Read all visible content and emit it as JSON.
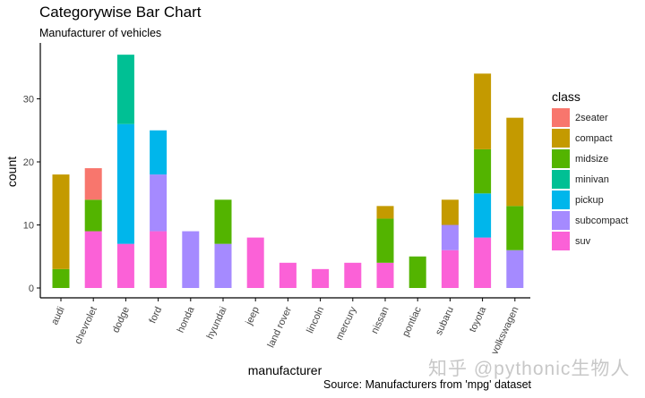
{
  "title": "Categorywise Bar Chart",
  "subtitle": "Manufacturer of vehicles",
  "caption": "Source: Manufacturers from 'mpg' dataset",
  "watermark": "知乎 @pythonic生物人",
  "legend": {
    "title": "class",
    "items": [
      {
        "label": "2seater",
        "color": "#F8766D"
      },
      {
        "label": "compact",
        "color": "#C49A00"
      },
      {
        "label": "midsize",
        "color": "#53B400"
      },
      {
        "label": "minivan",
        "color": "#00C094"
      },
      {
        "label": "pickup",
        "color": "#00B6EB"
      },
      {
        "label": "subcompact",
        "color": "#A58AFF"
      },
      {
        "label": "suv",
        "color": "#FB61D7"
      }
    ]
  },
  "chart_data": {
    "type": "bar",
    "stacked": true,
    "title": "Categorywise Bar Chart",
    "subtitle": "Manufacturer of vehicles",
    "xlabel": "manufacturer",
    "ylabel": "count",
    "caption": "Source: Manufacturers from 'mpg' dataset",
    "ylim": [
      0,
      38
    ],
    "yticks": [
      0,
      10,
      20,
      30
    ],
    "grid": false,
    "legend_position": "right",
    "legend_title": "class",
    "categories": [
      "audi",
      "chevrolet",
      "dodge",
      "ford",
      "honda",
      "hyundai",
      "jeep",
      "land rover",
      "lincoln",
      "mercury",
      "nissan",
      "pontiac",
      "subaru",
      "toyota",
      "volkswagen"
    ],
    "series": [
      {
        "name": "2seater",
        "color": "#F8766D",
        "values": [
          0,
          5,
          0,
          0,
          0,
          0,
          0,
          0,
          0,
          0,
          0,
          0,
          0,
          0,
          0
        ]
      },
      {
        "name": "compact",
        "color": "#C49A00",
        "values": [
          15,
          0,
          0,
          0,
          0,
          0,
          0,
          0,
          0,
          0,
          2,
          0,
          4,
          12,
          14
        ]
      },
      {
        "name": "midsize",
        "color": "#53B400",
        "values": [
          3,
          5,
          0,
          0,
          0,
          7,
          0,
          0,
          0,
          0,
          7,
          5,
          0,
          7,
          7
        ]
      },
      {
        "name": "minivan",
        "color": "#00C094",
        "values": [
          0,
          0,
          11,
          0,
          0,
          0,
          0,
          0,
          0,
          0,
          0,
          0,
          0,
          0,
          0
        ]
      },
      {
        "name": "pickup",
        "color": "#00B6EB",
        "values": [
          0,
          0,
          19,
          7,
          0,
          0,
          0,
          0,
          0,
          0,
          0,
          0,
          0,
          7,
          0
        ]
      },
      {
        "name": "subcompact",
        "color": "#A58AFF",
        "values": [
          0,
          0,
          0,
          9,
          9,
          7,
          0,
          0,
          0,
          0,
          0,
          0,
          4,
          0,
          6
        ]
      },
      {
        "name": "suv",
        "color": "#FB61D7",
        "values": [
          0,
          9,
          7,
          9,
          0,
          0,
          8,
          4,
          3,
          4,
          4,
          0,
          6,
          8,
          0
        ]
      }
    ],
    "totals": [
      18,
      19,
      37,
      25,
      9,
      14,
      8,
      4,
      3,
      4,
      13,
      5,
      14,
      34,
      27
    ]
  }
}
